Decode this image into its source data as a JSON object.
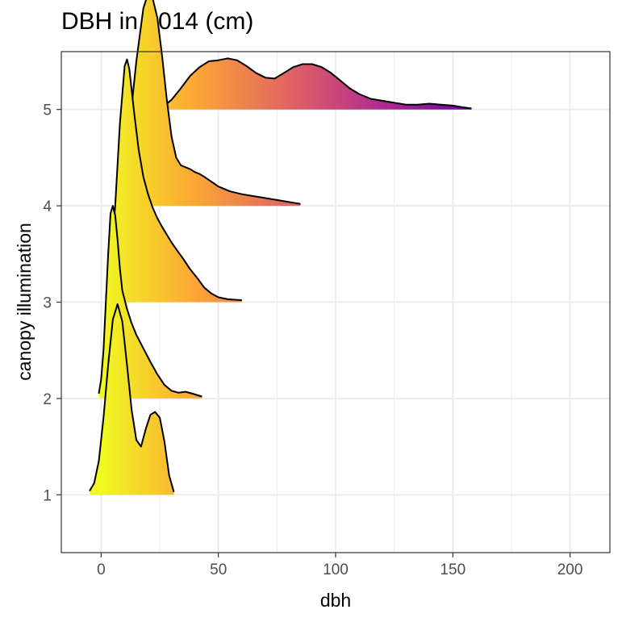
{
  "chart_data": {
    "type": "ridgeline",
    "title": "DBH in 2014 (cm)",
    "xlabel": "dbh",
    "ylabel": "canopy illumination",
    "xlim": [
      -17,
      217
    ],
    "ylim": [
      0.4,
      5.6
    ],
    "x_ticks": [
      0,
      50,
      100,
      150,
      200
    ],
    "y_ticks": [
      1,
      2,
      3,
      4,
      5
    ],
    "grid": true,
    "fill": "gradient by dbh (yellow → orange → magenta → purple)",
    "gradient_stops": [
      {
        "x": 0,
        "color": "#f0f921"
      },
      {
        "x": 40,
        "color": "#fca636"
      },
      {
        "x": 80,
        "color": "#e16462"
      },
      {
        "x": 120,
        "color": "#b12a90"
      },
      {
        "x": 160,
        "color": "#6a00a8"
      }
    ],
    "series": [
      {
        "name": "1",
        "baseline": 1,
        "x": [
          -5,
          -3,
          -1,
          1,
          3,
          5,
          7,
          9,
          11,
          13,
          15,
          17,
          19,
          21,
          23,
          25,
          27,
          29,
          31
        ],
        "y": [
          0.04,
          0.12,
          0.35,
          0.8,
          1.35,
          1.82,
          1.98,
          1.8,
          1.35,
          0.88,
          0.57,
          0.5,
          0.68,
          0.83,
          0.86,
          0.8,
          0.55,
          0.2,
          0.03
        ]
      },
      {
        "name": "2",
        "baseline": 2,
        "x": [
          -1,
          0,
          1,
          2,
          3,
          4,
          5,
          6,
          7,
          8,
          9,
          11,
          13,
          15,
          18,
          21,
          24,
          27,
          30,
          33,
          36,
          39,
          43
        ],
        "y": [
          0.05,
          0.2,
          0.5,
          1.0,
          1.5,
          1.92,
          2.0,
          1.9,
          1.65,
          1.35,
          1.12,
          0.93,
          0.78,
          0.66,
          0.52,
          0.38,
          0.25,
          0.14,
          0.08,
          0.06,
          0.07,
          0.05,
          0.02
        ]
      },
      {
        "name": "3",
        "baseline": 3,
        "x": [
          2,
          4,
          6,
          8,
          10,
          11,
          12,
          14,
          16,
          18,
          20,
          22,
          24,
          26,
          28,
          30,
          32,
          35,
          38,
          41,
          44,
          47,
          50,
          54,
          60
        ],
        "y": [
          0.05,
          0.35,
          1.0,
          1.85,
          2.45,
          2.52,
          2.42,
          1.98,
          1.58,
          1.3,
          1.12,
          0.98,
          0.87,
          0.78,
          0.7,
          0.62,
          0.55,
          0.45,
          0.34,
          0.25,
          0.15,
          0.09,
          0.05,
          0.03,
          0.02
        ]
      },
      {
        "name": "4",
        "baseline": 4,
        "x": [
          6,
          9,
          12,
          15,
          18,
          20,
          22,
          24,
          26,
          28,
          30,
          32,
          34,
          36,
          38,
          40,
          42,
          44,
          47,
          50,
          55,
          60,
          65,
          70,
          75,
          80,
          85
        ],
        "y": [
          0.05,
          0.25,
          0.8,
          1.5,
          2.05,
          2.2,
          2.15,
          1.95,
          1.55,
          1.1,
          0.72,
          0.5,
          0.42,
          0.4,
          0.38,
          0.35,
          0.33,
          0.3,
          0.25,
          0.2,
          0.15,
          0.12,
          0.1,
          0.08,
          0.06,
          0.04,
          0.02
        ]
      }
    ],
    "series_top": {
      "name": "5",
      "baseline": 5,
      "x": [
        26,
        30,
        35,
        40,
        45,
        50,
        55,
        60,
        65,
        70,
        75,
        80,
        85,
        90,
        95,
        100,
        105,
        110,
        115,
        120,
        125,
        130,
        135,
        140,
        145,
        150,
        155,
        158
      ],
      "y": [
        0.05,
        0.12,
        0.28,
        0.5,
        0.5,
        0.4,
        0.2,
        0.0,
        0.0,
        0.0,
        0.0,
        0.0,
        0.0,
        0.0,
        0.0,
        0.0,
        0.0,
        0.0,
        0.0,
        0.0,
        0.0,
        0.0,
        0.0,
        0.0,
        0.0,
        0.0,
        0.0,
        0.0
      ]
    },
    "ridge5": {
      "name": "5",
      "baseline": 5,
      "x": [
        26,
        30,
        34,
        38,
        42,
        46,
        50,
        54,
        58,
        62,
        66,
        70,
        74,
        78,
        82,
        86,
        90,
        94,
        98,
        102,
        106,
        110,
        115,
        120,
        125,
        130,
        135,
        140,
        145,
        150,
        155,
        158
      ],
      "y": [
        0.02,
        0.1,
        0.22,
        0.35,
        0.44,
        0.5,
        0.51,
        0.53,
        0.51,
        0.45,
        0.38,
        0.33,
        0.32,
        0.38,
        0.44,
        0.47,
        0.47,
        0.44,
        0.38,
        0.3,
        0.22,
        0.16,
        0.11,
        0.09,
        0.07,
        0.05,
        0.05,
        0.06,
        0.05,
        0.04,
        0.02,
        0.01
      ]
    }
  }
}
